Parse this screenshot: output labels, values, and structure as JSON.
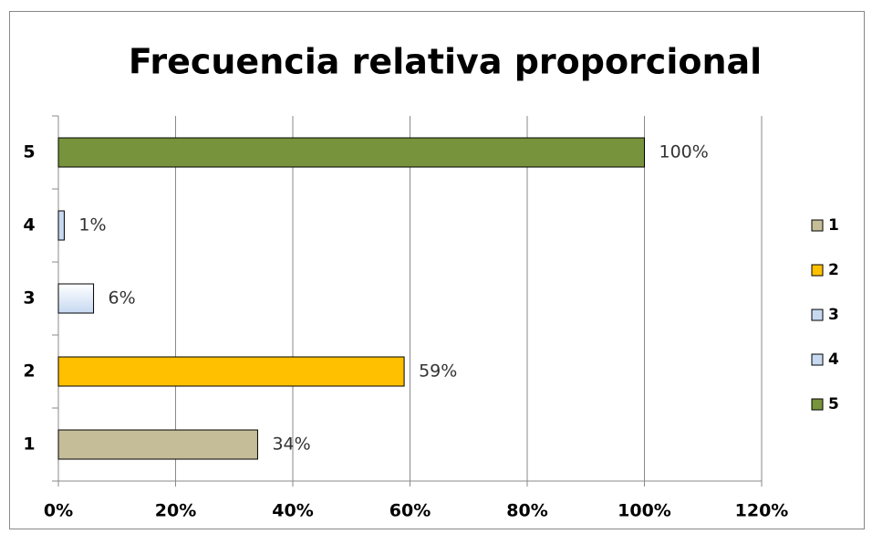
{
  "chart_data": {
    "type": "bar",
    "orientation": "horizontal",
    "title": "Frecuencia relativa proporcional",
    "categories": [
      "1",
      "2",
      "3",
      "4",
      "5"
    ],
    "values": [
      34,
      59,
      6,
      1,
      100
    ],
    "value_labels": [
      "34%",
      "59%",
      "6%",
      "1%",
      "100%"
    ],
    "colors": [
      "#c4bd97",
      "#ffc000",
      "#c6d9f1",
      "#c6d9f1",
      "#77933c"
    ],
    "xlim": [
      0,
      120
    ],
    "xticks": [
      {
        "value": 0,
        "label": "0%"
      },
      {
        "value": 20,
        "label": "20%"
      },
      {
        "value": 40,
        "label": "40%"
      },
      {
        "value": 60,
        "label": "60%"
      },
      {
        "value": 80,
        "label": "80%"
      },
      {
        "value": 100,
        "label": "100%"
      },
      {
        "value": 120,
        "label": "120%"
      }
    ],
    "grid": true,
    "legend": "right"
  }
}
